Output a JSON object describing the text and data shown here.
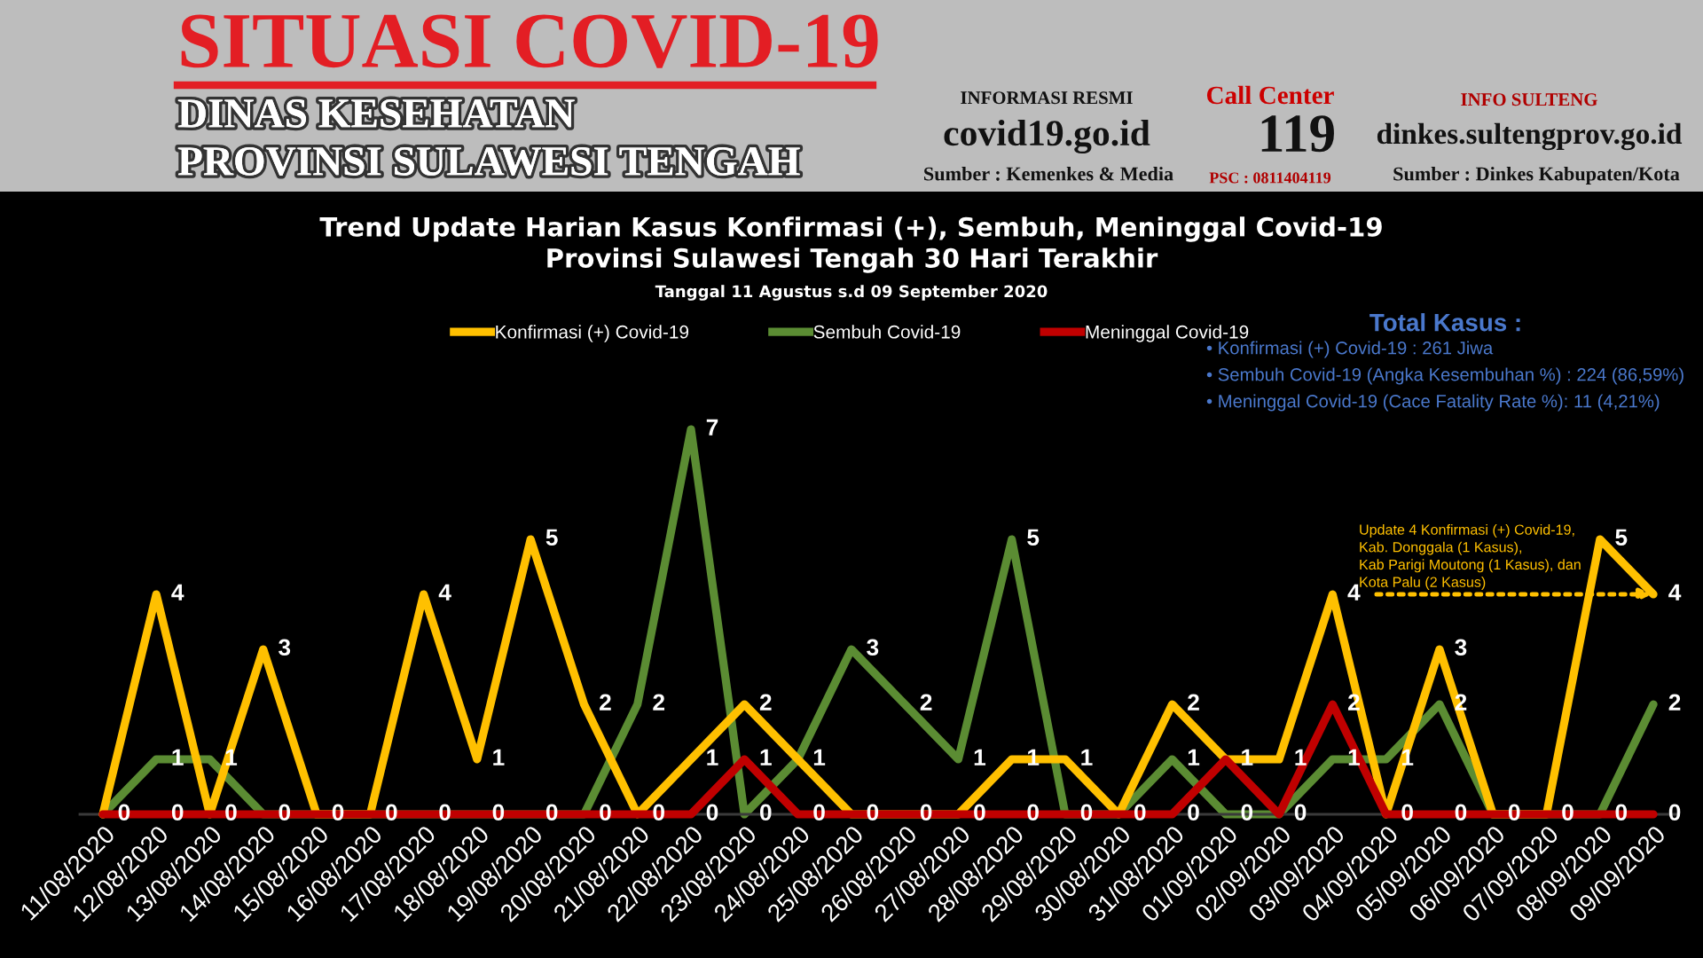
{
  "chart_data": {
    "type": "line",
    "title": "Trend Update Harian Kasus Konfirmasi (+), Sembuh, Meninggal Covid-19\nProvinsi Sulawesi Tengah 30 Hari Terakhir",
    "subtitle": "Tanggal 11 Agustus s.d 09 September 2020",
    "categories": [
      "11/08/2020",
      "12/08/2020",
      "13/08/2020",
      "14/08/2020",
      "15/08/2020",
      "16/08/2020",
      "17/08/2020",
      "18/08/2020",
      "19/08/2020",
      "20/08/2020",
      "21/08/2020",
      "22/08/2020",
      "23/08/2020",
      "24/08/2020",
      "25/08/2020",
      "26/08/2020",
      "27/08/2020",
      "28/08/2020",
      "29/08/2020",
      "30/08/2020",
      "31/08/2020",
      "01/09/2020",
      "02/09/2020",
      "03/09/2020",
      "04/09/2020",
      "05/09/2020",
      "06/09/2020",
      "07/09/2020",
      "08/09/2020",
      "09/09/2020"
    ],
    "series": [
      {
        "name": "Sembuh Covid-19",
        "color": "#5b8c33",
        "values": [
          0,
          1,
          1,
          0,
          0,
          0,
          0,
          0,
          0,
          0,
          2,
          7,
          0,
          1,
          3,
          2,
          1,
          5,
          0,
          0,
          1,
          0,
          0,
          1,
          1,
          2,
          0,
          0,
          0,
          2
        ],
        "value_labels": [
          null,
          "1",
          "1",
          "0",
          null,
          null,
          "0",
          "0",
          "0",
          "0",
          "2",
          "7",
          "0",
          null,
          "3",
          "2",
          "1",
          "5",
          "0",
          null,
          "1",
          "0",
          "0",
          "1",
          "1",
          "2",
          null,
          null,
          "0",
          "2"
        ]
      },
      {
        "name": "Konfirmasi (+) Covid-19",
        "color": "#ffc000",
        "values": [
          0,
          4,
          0,
          3,
          0,
          0,
          4,
          1,
          5,
          2,
          0,
          1,
          2,
          1,
          0,
          0,
          0,
          1,
          1,
          0,
          2,
          1,
          1,
          4,
          0,
          3,
          0,
          0,
          5,
          4
        ],
        "value_labels": [
          "0",
          "4",
          "0",
          "3",
          "0",
          "0",
          "4",
          "1",
          "5",
          "2",
          "0",
          "1",
          "2",
          "1",
          "0",
          "0",
          "0",
          "1",
          "1",
          "0",
          "2",
          "1",
          "1",
          "4",
          "0",
          "3",
          "0",
          "0",
          "5",
          "4"
        ]
      },
      {
        "name": "Meninggal Covid-19",
        "color": "#c00000",
        "values": [
          0,
          0,
          0,
          0,
          0,
          0,
          0,
          0,
          0,
          0,
          0,
          0,
          1,
          0,
          0,
          0,
          0,
          0,
          0,
          0,
          0,
          1,
          0,
          2,
          0,
          0,
          0,
          0,
          0,
          0
        ],
        "value_labels": [
          null,
          "0",
          null,
          null,
          null,
          null,
          null,
          null,
          null,
          null,
          null,
          "0",
          "1",
          "0",
          null,
          null,
          null,
          "0",
          null,
          null,
          "0",
          null,
          null,
          "2",
          null,
          "0",
          null,
          null,
          null,
          "0"
        ]
      }
    ],
    "tick_labels": "x",
    "legend": "top",
    "annotations": [
      "SITUASI COVID-19",
      "DINAS KESEHATAN",
      "PROVINSI SULAWESI TENGAH",
      "INFORMASI RESMI",
      "covid19.go.id",
      "Sumber : Kemenkes & Media",
      "Call Center",
      "119",
      "PSC : 0811404119",
      "INFO SULTENG",
      "dinkes.sultengprov.go.id",
      "Sumber : Dinkes Kabupaten/Kota",
      "Total Kasus :",
      "• Konfirmasi (+) Covid-19 : 261 Jiwa",
      "• Sembuh Covid-19 (Angka Kesembuhan %) : 224 (86,59%)",
      "• Meninggal Covid-19 (Cace Fatality Rate %): 11 (4,21%)",
      "Update 4 Konfirmasi (+) Covid-19,\nKab. Donggala (1 Kasus),\nKab Parigi Moutong (1 Kasus), dan\nKota Palu (2 Kasus)"
    ]
  }
}
